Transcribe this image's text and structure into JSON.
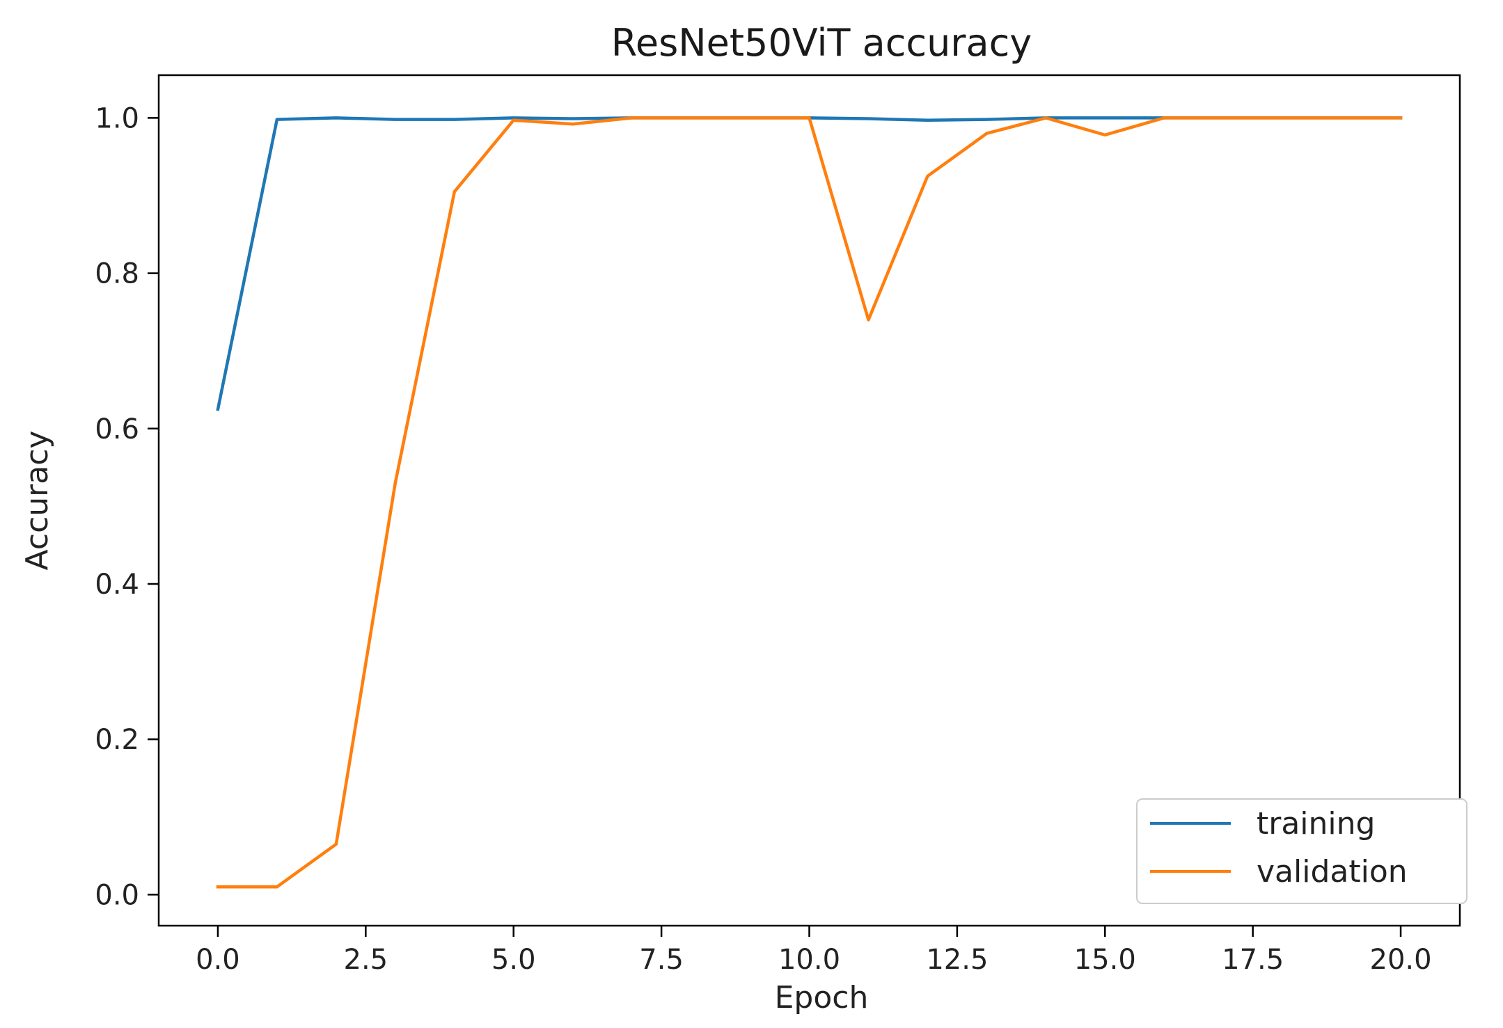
{
  "chart_data": {
    "type": "line",
    "title": "ResNet50ViT  accuracy",
    "xlabel": "Epoch",
    "ylabel": "Accuracy",
    "xlim": [
      -1.0,
      21.0
    ],
    "ylim": [
      -0.04,
      1.055
    ],
    "xticks": [
      0.0,
      2.5,
      5.0,
      7.5,
      10.0,
      12.5,
      15.0,
      17.5,
      20.0
    ],
    "xtick_labels": [
      "0.0",
      "2.5",
      "5.0",
      "7.5",
      "10.0",
      "12.5",
      "15.0",
      "17.5",
      "20.0"
    ],
    "yticks": [
      0.0,
      0.2,
      0.4,
      0.6,
      0.8,
      1.0
    ],
    "ytick_labels": [
      "0.0",
      "0.2",
      "0.4",
      "0.6",
      "0.8",
      "1.0"
    ],
    "grid": false,
    "legend_position": "lower-right",
    "x": [
      0,
      1,
      2,
      3,
      4,
      5,
      6,
      7,
      8,
      9,
      10,
      11,
      12,
      13,
      14,
      15,
      16,
      17,
      18,
      19,
      20
    ],
    "series": [
      {
        "name": "training",
        "color": "#1f77b4",
        "values": [
          0.625,
          0.998,
          1.0,
          0.998,
          0.998,
          1.0,
          0.999,
          1.0,
          1.0,
          1.0,
          1.0,
          0.999,
          0.997,
          0.998,
          1.0,
          1.0,
          1.0,
          1.0,
          1.0,
          1.0,
          1.0
        ]
      },
      {
        "name": "validation",
        "color": "#ff7f0e",
        "values": [
          0.01,
          0.01,
          0.065,
          0.53,
          0.905,
          0.997,
          0.992,
          1.0,
          1.0,
          1.0,
          1.0,
          0.74,
          0.925,
          0.98,
          1.0,
          0.978,
          1.0,
          1.0,
          1.0,
          1.0,
          1.0
        ]
      }
    ]
  }
}
